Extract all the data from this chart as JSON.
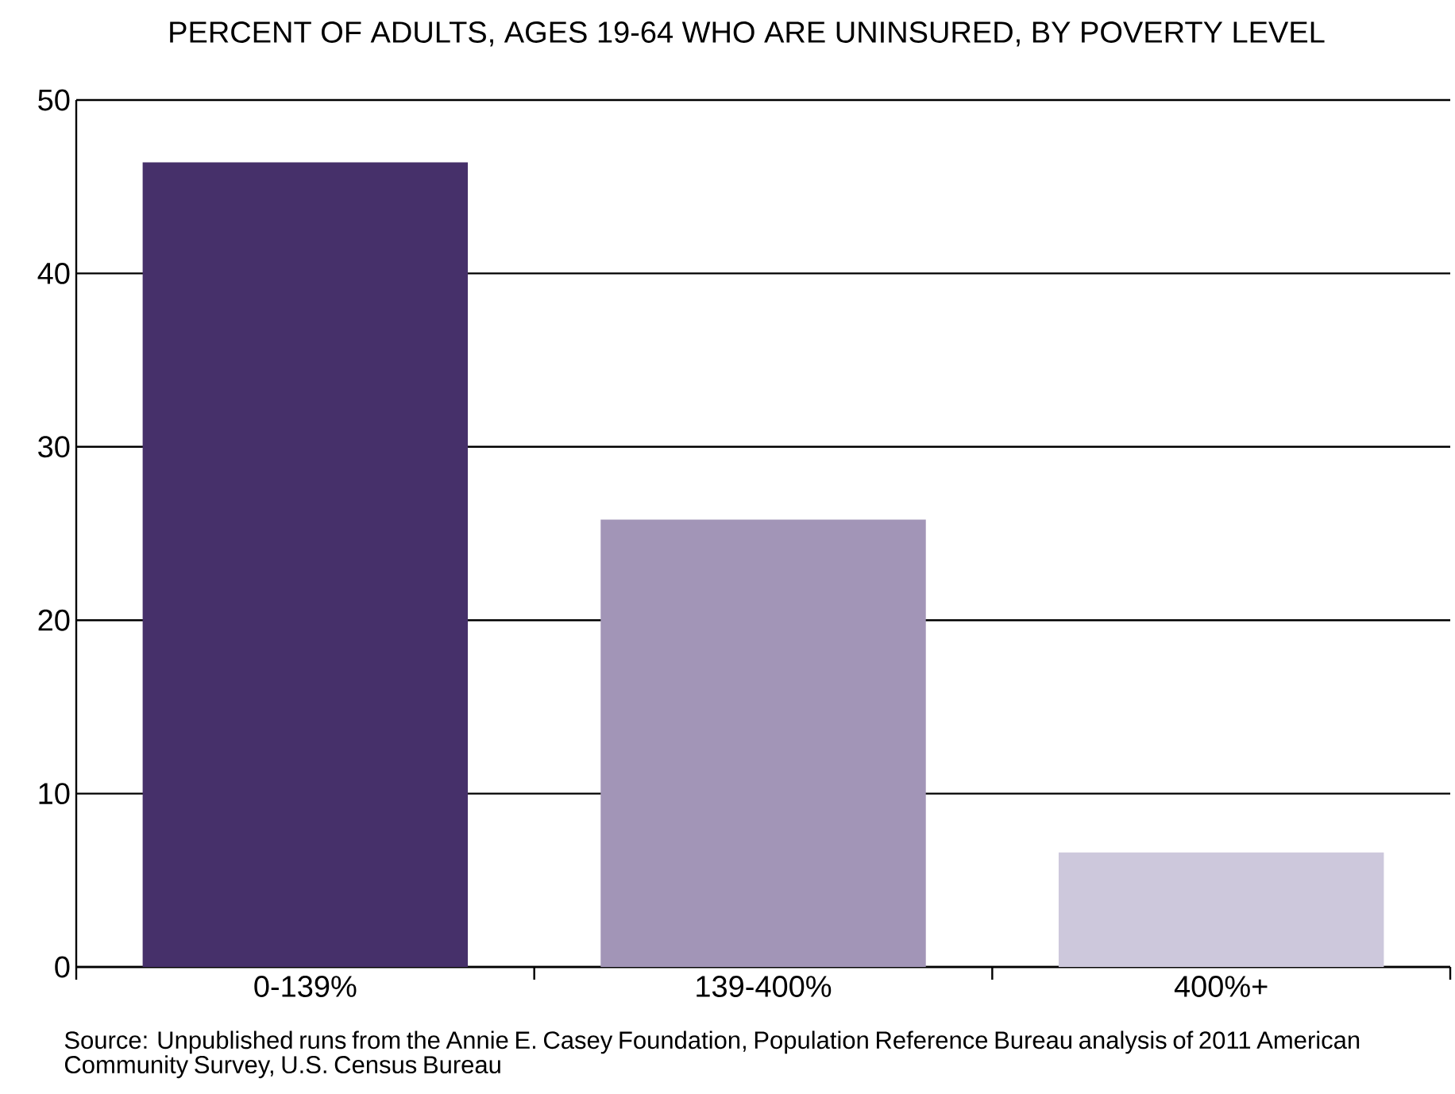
{
  "chart_data": {
    "type": "bar",
    "title": "PERCENT OF ADULTS, AGES 19-64 WHO ARE UNINSURED, BY POVERTY LEVEL",
    "categories": [
      "0-139%",
      "139-400%",
      "400%+"
    ],
    "values": [
      46.4,
      25.8,
      6.6
    ],
    "colors": [
      "#46306a",
      "#a295b7",
      "#cdc8dc"
    ],
    "ylim": [
      0,
      50
    ],
    "yticks": [
      0,
      10,
      20,
      30,
      40,
      50
    ],
    "grid": "y",
    "annotations": [
      "Source: Unpublished runs from the Annie E. Casey Foundation, Population Reference Bureau analysis of 2011 American Community Survey, U.S. Census Bureau"
    ]
  }
}
